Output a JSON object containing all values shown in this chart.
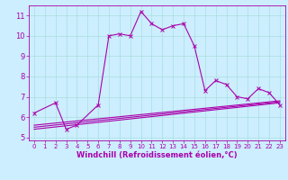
{
  "x": [
    0,
    1,
    2,
    3,
    4,
    5,
    6,
    7,
    8,
    9,
    10,
    11,
    12,
    13,
    14,
    15,
    16,
    17,
    18,
    19,
    20,
    21,
    22,
    23
  ],
  "line1": [
    6.2,
    null,
    6.7,
    5.4,
    5.6,
    null,
    6.6,
    10.0,
    10.1,
    10.0,
    11.2,
    10.6,
    10.3,
    10.5,
    10.6,
    9.5,
    7.3,
    7.8,
    7.6,
    7.0,
    6.9,
    7.4,
    7.2,
    6.6
  ],
  "line3_x": [
    0,
    23
  ],
  "line3_y": [
    5.6,
    6.8
  ],
  "line4_x": [
    0,
    23
  ],
  "line4_y": [
    5.5,
    6.75
  ],
  "line5_x": [
    0,
    23
  ],
  "line5_y": [
    5.4,
    6.7
  ],
  "xlim": [
    -0.5,
    23.5
  ],
  "ylim": [
    4.85,
    11.5
  ],
  "yticks": [
    5,
    6,
    7,
    8,
    9,
    10,
    11
  ],
  "xticks": [
    0,
    1,
    2,
    3,
    4,
    5,
    6,
    7,
    8,
    9,
    10,
    11,
    12,
    13,
    14,
    15,
    16,
    17,
    18,
    19,
    20,
    21,
    22,
    23
  ],
  "color": "#aa00aa",
  "bg_color": "#cceeff",
  "grid_color": "#aadddd",
  "xlabel": "Windchill (Refroidissement éolien,°C)",
  "xlabel_fontsize": 6.0,
  "tick_fontsize_x": 5.0,
  "tick_fontsize_y": 6.0
}
